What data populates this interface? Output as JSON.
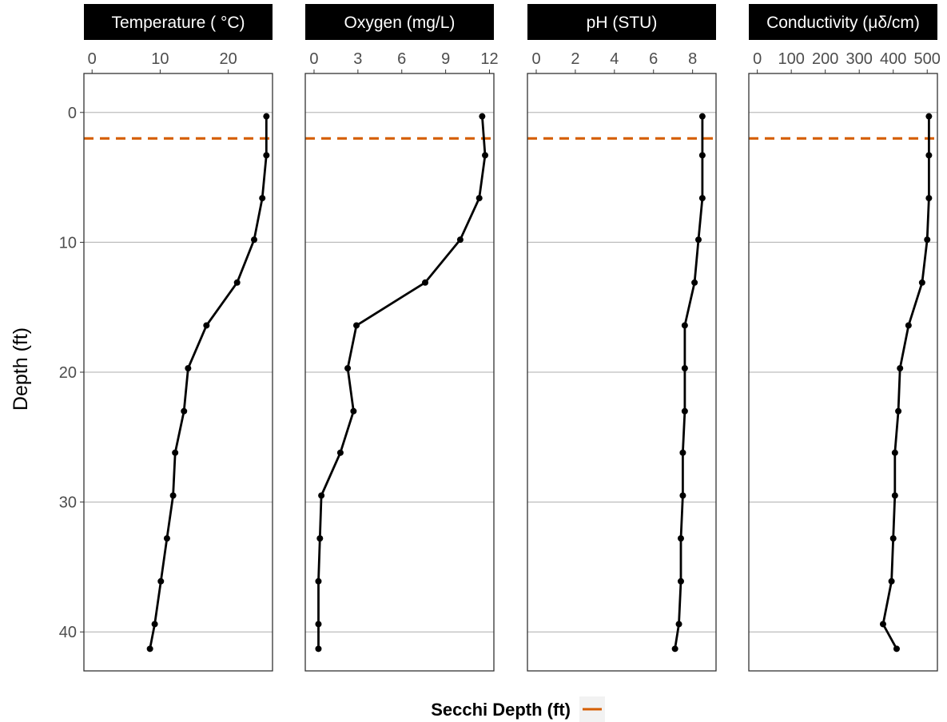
{
  "chart_data": {
    "type": "line",
    "ylabel": "Depth (ft)",
    "y_reversed": true,
    "ylim": [
      -3,
      43
    ],
    "y_ticks": [
      0,
      10,
      20,
      30,
      40
    ],
    "grid": "horizontal major gridlines",
    "secchi_depth": 2,
    "legend": {
      "title": "Secchi Depth (ft)",
      "position": "bottom",
      "color": "#D55E00"
    },
    "line_color": "#000000",
    "depths": [
      0.3,
      3.3,
      6.6,
      9.8,
      13.1,
      16.4,
      19.7,
      23.0,
      26.2,
      29.5,
      32.8,
      36.1,
      39.4,
      41.3
    ],
    "panels": [
      {
        "title": "Temperature ( °C)",
        "xlim": [
          -1.2,
          26.5
        ],
        "x_ticks": [
          0,
          10,
          20
        ],
        "x_tick_labels": [
          "0",
          "10",
          "20"
        ],
        "values": [
          25.6,
          25.6,
          25.0,
          23.8,
          21.3,
          16.8,
          14.1,
          13.5,
          12.2,
          11.9,
          11.0,
          10.1,
          9.2,
          8.5
        ]
      },
      {
        "title": "Oxygen (mg/L)",
        "xlim": [
          -0.6,
          12.3
        ],
        "x_ticks": [
          0,
          3,
          6,
          9,
          12
        ],
        "x_tick_labels": [
          "0",
          "3",
          "6",
          "9",
          "12"
        ],
        "values": [
          11.5,
          11.7,
          11.3,
          10.0,
          7.6,
          2.9,
          2.3,
          2.7,
          1.8,
          0.5,
          0.4,
          0.3,
          0.3,
          0.3
        ]
      },
      {
        "title": "pH (STU)",
        "xlim": [
          -0.45,
          9.2
        ],
        "x_ticks": [
          0,
          2,
          4,
          6,
          8
        ],
        "x_tick_labels": [
          "0",
          "2",
          "4",
          "6",
          "8"
        ],
        "values": [
          8.5,
          8.5,
          8.5,
          8.3,
          8.1,
          7.6,
          7.6,
          7.6,
          7.5,
          7.5,
          7.4,
          7.4,
          7.3,
          7.1
        ]
      },
      {
        "title": "Conductivity (μδ/cm)",
        "xlim": [
          -25,
          530
        ],
        "x_ticks": [
          0,
          100,
          200,
          300,
          400,
          500
        ],
        "x_tick_labels": [
          "0",
          "100",
          "200",
          "300",
          "400",
          "500"
        ],
        "values": [
          505,
          505,
          505,
          500,
          485,
          445,
          420,
          415,
          405,
          405,
          400,
          395,
          370,
          410
        ]
      }
    ]
  }
}
